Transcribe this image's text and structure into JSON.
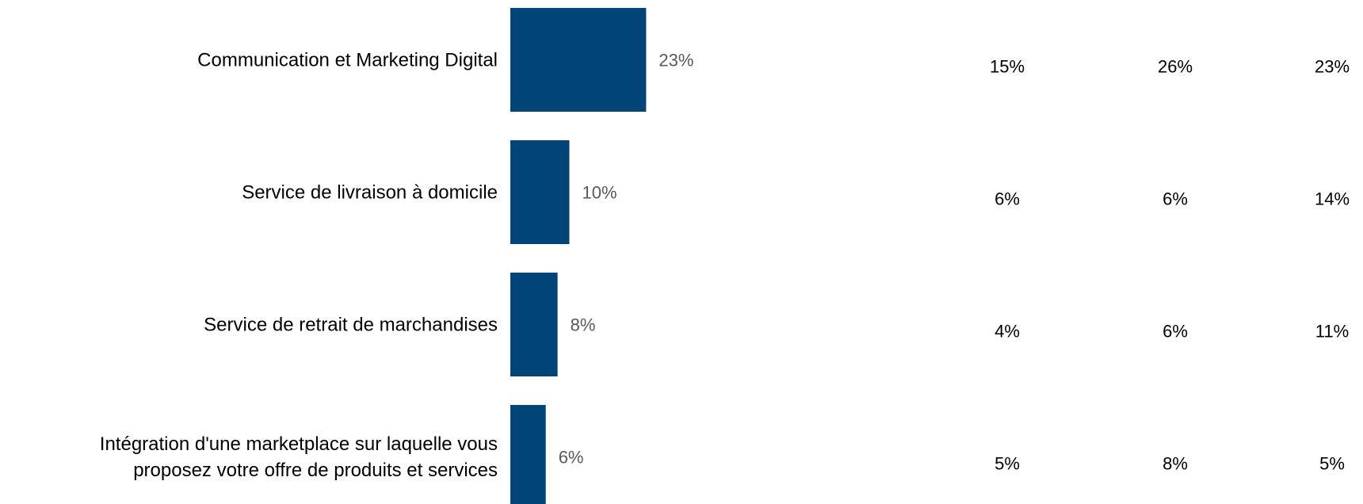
{
  "chart_data": {
    "type": "bar",
    "orientation": "horizontal",
    "categories": [
      [
        "Communication et Marketing Digital"
      ],
      [
        "Service de livraison à domicile"
      ],
      [
        "Service de retrait de marchandises"
      ],
      [
        "Intégration d'une marketplace sur laquelle vous",
        "proposez votre offre de produits et services"
      ]
    ],
    "values": [
      23,
      10,
      8,
      6
    ],
    "value_labels": [
      "23%",
      "10%",
      "8%",
      "6%"
    ],
    "bar_color": "#004478",
    "xlim": [
      0,
      100
    ],
    "grid": false,
    "legend": "none",
    "table_columns": [
      {
        "values": [
          "15%",
          "6%",
          "4%",
          "5%"
        ]
      },
      {
        "values": [
          "26%",
          "6%",
          "6%",
          "8%"
        ]
      },
      {
        "values": [
          "23%",
          "14%",
          "11%",
          "5%"
        ]
      }
    ]
  }
}
